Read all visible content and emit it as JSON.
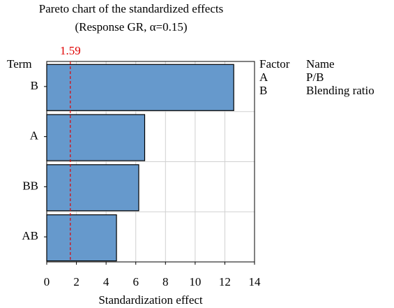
{
  "chart_data": {
    "type": "bar",
    "orientation": "horizontal",
    "title": "Pareto chart of the standardized effects",
    "subtitle": "(Response GR, α=0.15)",
    "x_label": "Standardization effect",
    "y_label": "Term",
    "categories": [
      "B",
      "A",
      "BB",
      "AB"
    ],
    "values": [
      12.6,
      6.6,
      6.2,
      4.7
    ],
    "color": "#6699cc",
    "xlim": [
      0,
      14
    ],
    "xticks": [
      0,
      2,
      4,
      6,
      8,
      10,
      12,
      14
    ],
    "grid": true,
    "reference_line": {
      "value": 1.59,
      "color": "#e00000"
    },
    "factor_table": {
      "headers": [
        "Factor",
        "Name"
      ],
      "rows": [
        [
          "A",
          "P/B"
        ],
        [
          "B",
          "Blending ratio"
        ]
      ]
    }
  }
}
